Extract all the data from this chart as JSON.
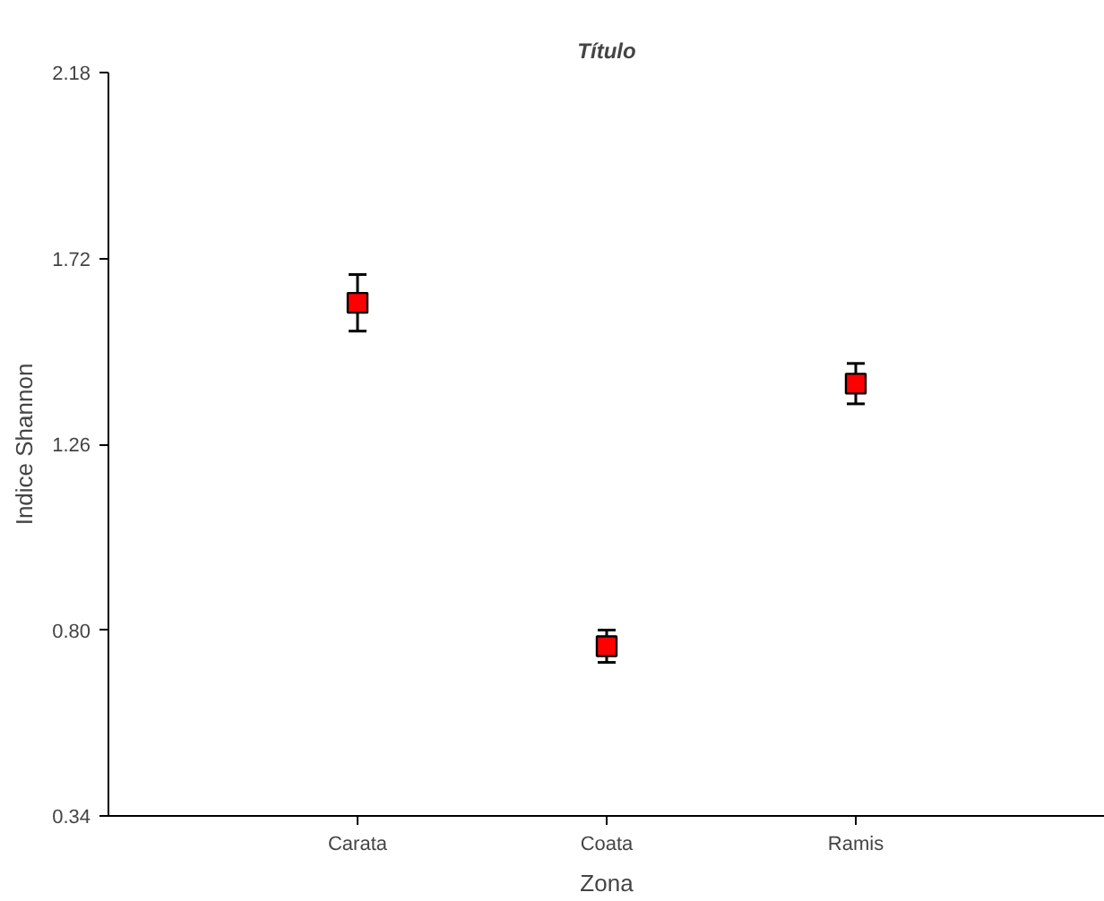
{
  "chart_data": {
    "type": "scatter",
    "title": "Título",
    "xlabel": "Zona",
    "ylabel": "Indice Shannon",
    "categories": [
      "Carata",
      "Coata",
      "Ramis"
    ],
    "values": [
      1.61,
      0.76,
      1.41
    ],
    "errors": [
      0.07,
      0.04,
      0.05
    ],
    "color": "#ff0000",
    "marker": "square",
    "ylim": [
      0.34,
      2.18
    ],
    "yticks": [
      {
        "value": 0.34,
        "label": "0.34"
      },
      {
        "value": 0.8,
        "label": "0.80"
      },
      1.26,
      1.72,
      2.18
    ],
    "grid": false
  }
}
